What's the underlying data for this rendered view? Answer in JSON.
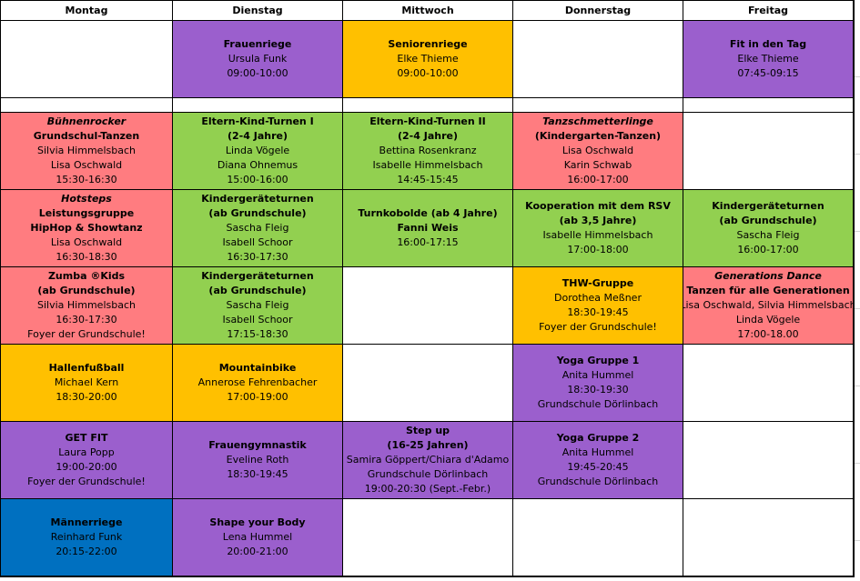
{
  "colors": {
    "red": "#ff7c80",
    "green": "#92d050",
    "orange": "#ffc000",
    "purple": "#9b5fcd",
    "blue": "#0070c0",
    "white": "#ffffff"
  },
  "days": [
    "Montag",
    "Dienstag",
    "Mittwoch",
    "Donnerstag",
    "Freitag"
  ],
  "rows": [
    [
      {
        "color": "white",
        "lines": []
      },
      {
        "color": "purple",
        "lines": [
          {
            "s": "b",
            "t": "Frauenriege"
          },
          {
            "s": "n",
            "t": "Ursula Funk"
          },
          {
            "s": "n",
            "t": "09:00-10:00"
          }
        ]
      },
      {
        "color": "orange",
        "lines": [
          {
            "s": "b",
            "t": "Seniorenriege"
          },
          {
            "s": "n",
            "t": "Elke Thieme"
          },
          {
            "s": "n",
            "t": "09:00-10:00"
          }
        ]
      },
      {
        "color": "white",
        "lines": []
      },
      {
        "color": "purple",
        "lines": [
          {
            "s": "b",
            "t": "Fit in den Tag"
          },
          {
            "s": "n",
            "t": "Elke Thieme"
          },
          {
            "s": "n",
            "t": "07:45-09:15"
          }
        ]
      }
    ],
    [
      {
        "color": "white",
        "lines": []
      },
      {
        "color": "white",
        "lines": []
      },
      {
        "color": "white",
        "lines": []
      },
      {
        "color": "white",
        "lines": []
      },
      {
        "color": "white",
        "lines": []
      }
    ],
    [
      {
        "color": "red",
        "lines": [
          {
            "s": "i",
            "t": "Bühnenrocker"
          },
          {
            "s": "b",
            "t": "Grundschul-Tanzen"
          },
          {
            "s": "n",
            "t": "Silvia Himmelsbach"
          },
          {
            "s": "n",
            "t": "Lisa Oschwald"
          },
          {
            "s": "n",
            "t": "15:30-16:30"
          }
        ]
      },
      {
        "color": "green",
        "lines": [
          {
            "s": "b",
            "t": "Eltern-Kind-Turnen I"
          },
          {
            "s": "b",
            "t": "(2-4 Jahre)"
          },
          {
            "s": "n",
            "t": "Linda Vögele"
          },
          {
            "s": "n",
            "t": "Diana Ohnemus"
          },
          {
            "s": "n",
            "t": "15:00-16:00"
          }
        ]
      },
      {
        "color": "green",
        "lines": [
          {
            "s": "b",
            "t": "Eltern-Kind-Turnen II"
          },
          {
            "s": "b",
            "t": "(2-4 Jahre)"
          },
          {
            "s": "n",
            "t": "Bettina Rosenkranz"
          },
          {
            "s": "n",
            "t": "Isabelle Himmelsbach"
          },
          {
            "s": "n",
            "t": "14:45-15:45"
          }
        ]
      },
      {
        "color": "red",
        "lines": [
          {
            "s": "i",
            "t": "Tanzschmetterlinge"
          },
          {
            "s": "b",
            "t": "(Kindergarten-Tanzen)"
          },
          {
            "s": "n",
            "t": "Lisa Oschwald"
          },
          {
            "s": "n",
            "t": "Karin Schwab"
          },
          {
            "s": "n",
            "t": "16:00-17:00"
          }
        ]
      },
      {
        "color": "white",
        "lines": []
      }
    ],
    [
      {
        "color": "red",
        "lines": [
          {
            "s": "i",
            "t": "Hotsteps"
          },
          {
            "s": "b",
            "t": "Leistungsgruppe"
          },
          {
            "s": "b",
            "t": "HipHop & Showtanz"
          },
          {
            "s": "n",
            "t": "Lisa Oschwald"
          },
          {
            "s": "n",
            "t": "16:30-18:30"
          }
        ]
      },
      {
        "color": "green",
        "lines": [
          {
            "s": "b",
            "t": "Kindergeräteturnen"
          },
          {
            "s": "b",
            "t": "(ab Grundschule)"
          },
          {
            "s": "n",
            "t": "Sascha Fleig"
          },
          {
            "s": "n",
            "t": "Isabell Schoor"
          },
          {
            "s": "n",
            "t": "16:30-17:30"
          }
        ]
      },
      {
        "color": "green",
        "lines": [
          {
            "s": "b",
            "t": "Turnkobolde  (ab 4 Jahre)"
          },
          {
            "s": "b",
            "t": "Fanni Weis"
          },
          {
            "s": "n",
            "t": "16:00-17:15"
          }
        ]
      },
      {
        "color": "green",
        "lines": [
          {
            "s": "b",
            "t": "Kooperation mit dem RSV"
          },
          {
            "s": "b",
            "t": "(ab 3,5 Jahre)"
          },
          {
            "s": "n",
            "t": "Isabelle Himmelsbach"
          },
          {
            "s": "n",
            "t": "17:00-18:00"
          }
        ]
      },
      {
        "color": "green",
        "lines": [
          {
            "s": "b",
            "t": "Kindergeräteturnen"
          },
          {
            "s": "b",
            "t": "(ab Grundschule)"
          },
          {
            "s": "n",
            "t": "Sascha Fleig"
          },
          {
            "s": "n",
            "t": "16:00-17:00"
          }
        ]
      }
    ],
    [
      {
        "color": "red",
        "lines": [
          {
            "s": "b",
            "t": "Zumba ®Kids"
          },
          {
            "s": "b",
            "t": "(ab Grundschule)"
          },
          {
            "s": "n",
            "t": "Silvia Himmelsbach"
          },
          {
            "s": "n",
            "t": "16:30-17:30"
          },
          {
            "s": "n",
            "t": "Foyer der Grundschule!"
          }
        ]
      },
      {
        "color": "green",
        "lines": [
          {
            "s": "b",
            "t": "Kindergeräteturnen"
          },
          {
            "s": "b",
            "t": "(ab Grundschule)"
          },
          {
            "s": "n",
            "t": "Sascha Fleig"
          },
          {
            "s": "n",
            "t": "Isabell Schoor"
          },
          {
            "s": "n",
            "t": "17:15-18:30"
          }
        ]
      },
      {
        "color": "white",
        "lines": []
      },
      {
        "color": "orange",
        "lines": [
          {
            "s": "b",
            "t": "THW-Gruppe"
          },
          {
            "s": "n",
            "t": "Dorothea Meßner"
          },
          {
            "s": "n",
            "t": "18:30-19:45"
          },
          {
            "s": "n",
            "t": "Foyer der Grundschule!"
          }
        ]
      },
      {
        "color": "red",
        "lines": [
          {
            "s": "i",
            "t": "Generations Dance"
          },
          {
            "s": "b",
            "t": "Tanzen für alle Generationen"
          },
          {
            "s": "n",
            "t": "Lisa Oschwald, Silvia Himmelsbach"
          },
          {
            "s": "n",
            "t": "Linda Vögele"
          },
          {
            "s": "n",
            "t": "17:00-18.00"
          }
        ]
      }
    ],
    [
      {
        "color": "orange",
        "lines": [
          {
            "s": "b",
            "t": "Hallenfußball"
          },
          {
            "s": "n",
            "t": "Michael Kern"
          },
          {
            "s": "n",
            "t": "18:30-20:00"
          }
        ]
      },
      {
        "color": "orange",
        "lines": [
          {
            "s": "b",
            "t": "Mountainbike"
          },
          {
            "s": "n",
            "t": "Annerose Fehrenbacher"
          },
          {
            "s": "n",
            "t": "17:00-19:00"
          }
        ]
      },
      {
        "color": "white",
        "lines": []
      },
      {
        "color": "purple",
        "lines": [
          {
            "s": "b",
            "t": "Yoga Gruppe 1"
          },
          {
            "s": "n",
            "t": "Anita Hummel"
          },
          {
            "s": "n",
            "t": "18:30-19:30"
          },
          {
            "s": "n",
            "t": "Grundschule Dörlinbach"
          }
        ]
      },
      {
        "color": "white",
        "lines": []
      }
    ],
    [
      {
        "color": "purple",
        "lines": [
          {
            "s": "b",
            "t": "GET FIT"
          },
          {
            "s": "n",
            "t": "Laura Popp"
          },
          {
            "s": "n",
            "t": "19:00-20:00"
          },
          {
            "s": "n",
            "t": "Foyer der Grundschule!"
          }
        ]
      },
      {
        "color": "purple",
        "lines": [
          {
            "s": "b",
            "t": "Frauengymnastik"
          },
          {
            "s": "n",
            "t": "Eveline Roth"
          },
          {
            "s": "n",
            "t": "18:30-19:45"
          }
        ]
      },
      {
        "color": "purple",
        "lines": [
          {
            "s": "b",
            "t": "Step up"
          },
          {
            "s": "b",
            "t": "(16-25 Jahren)"
          },
          {
            "s": "n",
            "t": "Samira Göppert/Chiara d'Adamo"
          },
          {
            "s": "n",
            "t": "Grundschule Dörlinbach"
          },
          {
            "s": "n",
            "t": "19:00-20:30 (Sept.-Febr.)"
          }
        ]
      },
      {
        "color": "purple",
        "lines": [
          {
            "s": "b",
            "t": "Yoga Gruppe 2"
          },
          {
            "s": "n",
            "t": "Anita Hummel"
          },
          {
            "s": "n",
            "t": "19:45-20:45"
          },
          {
            "s": "n",
            "t": "Grundschule Dörlinbach"
          }
        ]
      },
      {
        "color": "white",
        "lines": []
      }
    ],
    [
      {
        "color": "blue",
        "lines": [
          {
            "s": "b",
            "t": "Männerriege"
          },
          {
            "s": "n",
            "t": "Reinhard Funk"
          },
          {
            "s": "n",
            "t": "20:15-22:00"
          }
        ]
      },
      {
        "color": "purple",
        "lines": [
          {
            "s": "b",
            "t": "Shape your Body"
          },
          {
            "s": "n",
            "t": "Lena Hummel"
          },
          {
            "s": "n",
            "t": "20:00-21:00"
          }
        ]
      },
      {
        "color": "white",
        "lines": []
      },
      {
        "color": "white",
        "lines": []
      },
      {
        "color": "white",
        "lines": []
      }
    ]
  ]
}
